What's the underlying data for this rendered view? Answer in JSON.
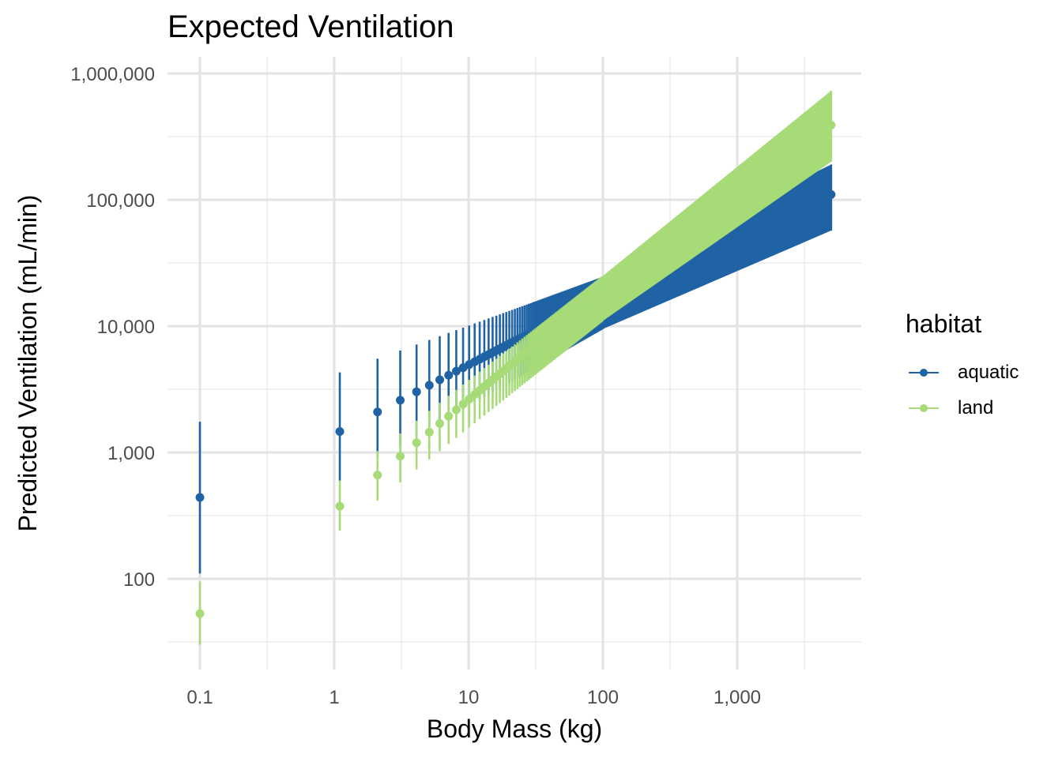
{
  "title": "Expected Ventilation",
  "chart_data": {
    "type": "scatter",
    "title": "Expected Ventilation",
    "xlabel": "Body Mass (kg)",
    "ylabel": "Predicted Ventilation (mL/min)",
    "x_scale": "log10",
    "y_scale": "log10",
    "xlim": [
      0.0645,
      7500
    ],
    "ylim": [
      17,
      1700000
    ],
    "x_ticks": [
      0.1,
      1,
      10,
      100,
      1000
    ],
    "x_tick_labels": [
      "0.1",
      "1",
      "10",
      "100",
      "1,000"
    ],
    "y_ticks": [
      100,
      1000,
      10000,
      100000,
      1000000
    ],
    "y_tick_labels": [
      "100",
      "1,000",
      "10,000",
      "100,000",
      "1,000,000"
    ],
    "grid": true,
    "legend_title": "habitat",
    "legend_position": "right",
    "x": {
      "start": 0.1,
      "dense_start": 1.1,
      "dense_end": 100,
      "dense_step": 1,
      "last": 5000
    },
    "series": [
      {
        "name": "aquatic",
        "color": "#1f63a4",
        "estimate_at_x1": 1390,
        "slope": 0.55,
        "estimate_at_0_1": 440,
        "ci_upper_at_0_1": 1750,
        "ci_lower_at_0_1": 110,
        "ci_upper_at_1_1": 4300,
        "ci_lower_at_1_1": 600,
        "ci_upper_at_100": 24500,
        "ci_lower_at_100": 9500,
        "estimate_at_5000": 110000,
        "ci_upper_at_5000": 190000,
        "ci_lower_at_5000": 57000
      },
      {
        "name": "land",
        "color": "#a6db78",
        "estimate_at_x1": 345,
        "slope": 0.88,
        "estimate_at_0_1": 53,
        "ci_upper_at_0_1": 95,
        "ci_lower_at_0_1": 30,
        "ci_upper_at_1_1": 600,
        "ci_lower_at_1_1": 240,
        "ci_upper_at_100": 25000,
        "ci_lower_at_100": 11000,
        "estimate_at_5000": 390000,
        "ci_upper_at_5000": 730000,
        "ci_lower_at_5000": 200000
      }
    ]
  }
}
